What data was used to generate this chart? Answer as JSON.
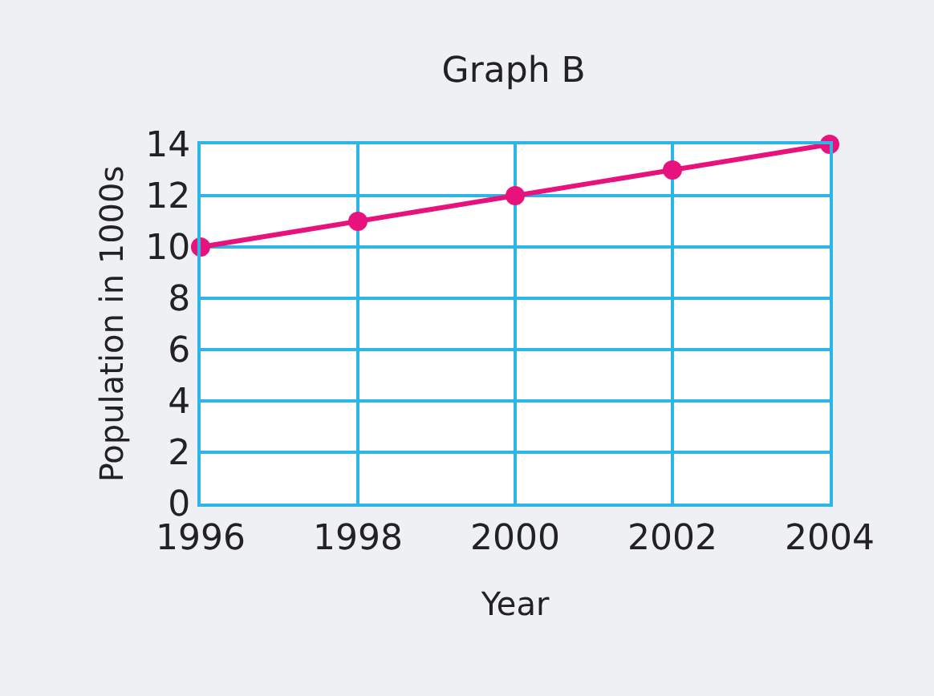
{
  "chart_data": {
    "type": "line",
    "title": "Graph B",
    "xlabel": "Year",
    "ylabel": "Population in 1000s",
    "x": [
      1996,
      1998,
      2000,
      2002,
      2004
    ],
    "series": [
      {
        "color": "#e8127c",
        "values": [
          10,
          11,
          12,
          13,
          14
        ]
      }
    ],
    "xlim": [
      1996,
      2004
    ],
    "xticks": [
      1996,
      1998,
      2000,
      2002,
      2004
    ],
    "ylim": [
      0,
      14
    ],
    "yticks": [
      0,
      2,
      4,
      6,
      8,
      10,
      12,
      14
    ],
    "grid": true,
    "marker": "circle",
    "line_style": "solid"
  }
}
